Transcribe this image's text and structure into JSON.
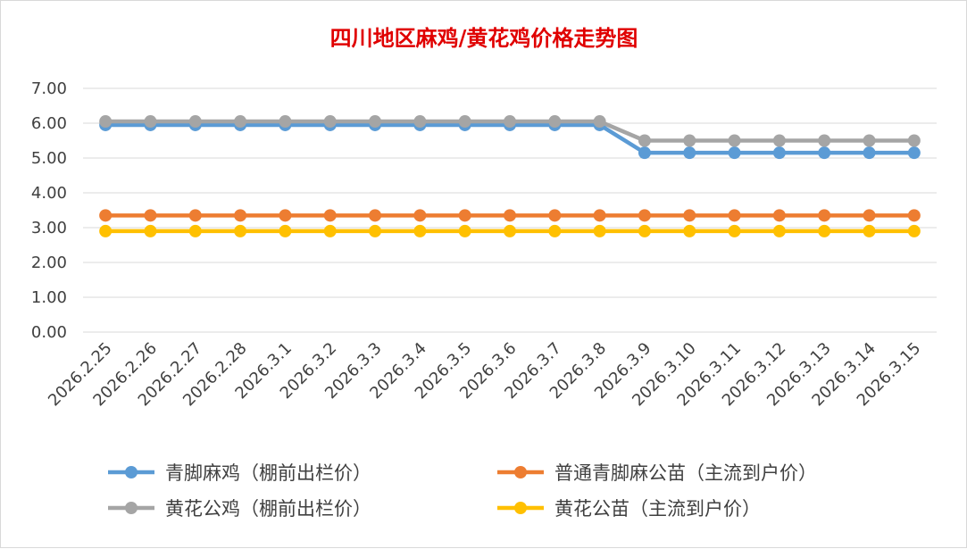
{
  "chart_data": {
    "type": "line",
    "title": "四川地区麻鸡/黄花鸡价格走势图",
    "xlabel": "",
    "ylabel": "",
    "ylim": [
      0,
      7
    ],
    "yticks": [
      "0.00",
      "1.00",
      "2.00",
      "3.00",
      "4.00",
      "5.00",
      "6.00",
      "7.00"
    ],
    "grid": true,
    "legend_position": "bottom",
    "categories": [
      "2026.2.25",
      "2026.2.26",
      "2026.2.27",
      "2026.2.28",
      "2026.3.1",
      "2026.3.2",
      "2026.3.3",
      "2026.3.4",
      "2026.3.5",
      "2026.3.6",
      "2026.3.7",
      "2026.3.8",
      "2026.3.9",
      "2026.3.10",
      "2026.3.11",
      "2026.3.12",
      "2026.3.13",
      "2026.3.14",
      "2026.3.15"
    ],
    "series": [
      {
        "name": "青脚麻鸡（棚前出栏价）",
        "color": "#5b9bd5",
        "values": [
          5.95,
          5.95,
          5.95,
          5.95,
          5.95,
          5.95,
          5.95,
          5.95,
          5.95,
          5.95,
          5.95,
          5.95,
          5.15,
          5.15,
          5.15,
          5.15,
          5.15,
          5.15,
          5.15
        ]
      },
      {
        "name": "普通青脚麻公苗（主流到户价）",
        "color": "#ed7d31",
        "values": [
          3.35,
          3.35,
          3.35,
          3.35,
          3.35,
          3.35,
          3.35,
          3.35,
          3.35,
          3.35,
          3.35,
          3.35,
          3.35,
          3.35,
          3.35,
          3.35,
          3.35,
          3.35,
          3.35
        ]
      },
      {
        "name": "黄花公鸡（棚前出栏价）",
        "color": "#a5a5a5",
        "values": [
          6.05,
          6.05,
          6.05,
          6.05,
          6.05,
          6.05,
          6.05,
          6.05,
          6.05,
          6.05,
          6.05,
          6.05,
          5.5,
          5.5,
          5.5,
          5.5,
          5.5,
          5.5,
          5.5
        ]
      },
      {
        "name": "黄花公苗（主流到户价）",
        "color": "#ffc000",
        "values": [
          2.9,
          2.9,
          2.9,
          2.9,
          2.9,
          2.9,
          2.9,
          2.9,
          2.9,
          2.9,
          2.9,
          2.9,
          2.9,
          2.9,
          2.9,
          2.9,
          2.9,
          2.9,
          2.9
        ]
      }
    ]
  }
}
